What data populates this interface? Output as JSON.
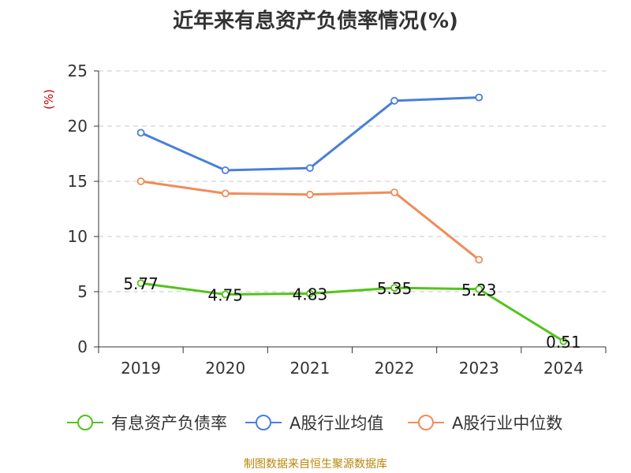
{
  "chart_data": {
    "type": "line",
    "title": "近年来有息资产负债率情况(%)",
    "ylabel": "(%)",
    "xlabel": "",
    "categories": [
      "2019",
      "2020",
      "2021",
      "2022",
      "2023",
      "2024"
    ],
    "ylim": [
      0,
      25
    ],
    "yticks": [
      "0",
      "5",
      "10",
      "15",
      "20",
      "25"
    ],
    "grid": true,
    "legend_position": "bottom",
    "series": [
      {
        "name": "有息资产负债率",
        "color": "#52c41a",
        "values": [
          5.77,
          4.75,
          4.83,
          5.35,
          5.23,
          0.51
        ],
        "labels": [
          "5.77",
          "4.75",
          "4.83",
          "5.35",
          "5.23",
          "0.51"
        ]
      },
      {
        "name": "A股行业均值",
        "color": "#4a7fd9",
        "values": [
          19.4,
          16.0,
          16.2,
          22.3,
          22.6,
          null
        ]
      },
      {
        "name": "A股行业中位数",
        "color": "#f08c5a",
        "values": [
          15.0,
          13.9,
          13.8,
          14.0,
          7.9,
          null
        ]
      }
    ]
  },
  "source": "制图数据来自恒生聚源数据库"
}
